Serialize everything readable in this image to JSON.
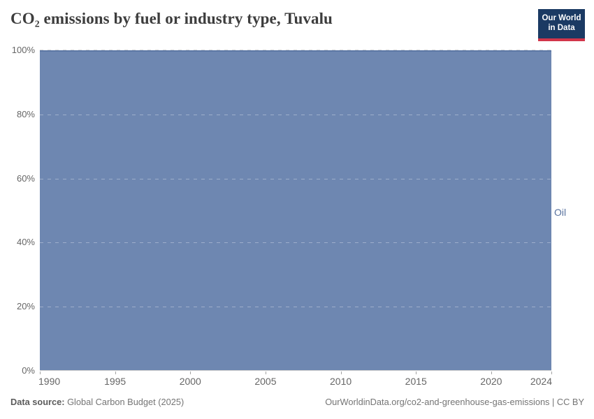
{
  "header": {
    "title": "CO₂ emissions by fuel or industry type, Tuvalu",
    "logo": {
      "line1": "Our World",
      "line2": "in Data"
    }
  },
  "chart": {
    "series_label": "Oil",
    "y_ticks": [
      {
        "label": "100%",
        "pct": 100
      },
      {
        "label": "80%",
        "pct": 80
      },
      {
        "label": "60%",
        "pct": 60
      },
      {
        "label": "40%",
        "pct": 40
      },
      {
        "label": "20%",
        "pct": 20
      },
      {
        "label": "0%",
        "pct": 0
      }
    ],
    "x_ticks": [
      {
        "label": "1990",
        "year": 1990
      },
      {
        "label": "1995",
        "year": 1995
      },
      {
        "label": "2000",
        "year": 2000
      },
      {
        "label": "2005",
        "year": 2005
      },
      {
        "label": "2010",
        "year": 2010
      },
      {
        "label": "2015",
        "year": 2015
      },
      {
        "label": "2020",
        "year": 2020
      },
      {
        "label": "2024",
        "year": 2024
      }
    ],
    "x_range": [
      1990,
      2024
    ]
  },
  "footer": {
    "source_label": "Data source:",
    "source_value": " Global Carbon Budget (2025)",
    "credit": "OurWorldinData.org/co2-and-greenhouse-gas-emissions | CC BY"
  },
  "colors": {
    "area_fill": "#6e87b1",
    "area_line": "#5d78a5",
    "series_label": "#57719e",
    "axis_text": "#666666",
    "logo_bg": "#1b3a63",
    "logo_red": "#d1354a",
    "title_text": "#3d3d3d"
  },
  "chart_data": {
    "type": "area",
    "stacking": "relative-100pct",
    "title": "CO₂ emissions by fuel or industry type, Tuvalu",
    "xlabel": "",
    "ylabel": "",
    "ylim": [
      0,
      100
    ],
    "xlim": [
      1990,
      2024
    ],
    "grid": true,
    "legend_position": "entity-label-right-of-plot",
    "x": [
      1990,
      1991,
      1992,
      1993,
      1994,
      1995,
      1996,
      1997,
      1998,
      1999,
      2000,
      2001,
      2002,
      2003,
      2004,
      2005,
      2006,
      2007,
      2008,
      2009,
      2010,
      2011,
      2012,
      2013,
      2014,
      2015,
      2016,
      2017,
      2018,
      2019,
      2020,
      2021,
      2022,
      2023,
      2024
    ],
    "series": [
      {
        "name": "Oil",
        "unit": "%",
        "values": [
          100,
          100,
          100,
          100,
          100,
          100,
          100,
          100,
          100,
          100,
          100,
          100,
          100,
          100,
          100,
          100,
          100,
          100,
          100,
          100,
          100,
          100,
          100,
          100,
          100,
          100,
          100,
          100,
          100,
          100,
          100,
          100,
          100,
          100,
          100
        ]
      }
    ]
  }
}
